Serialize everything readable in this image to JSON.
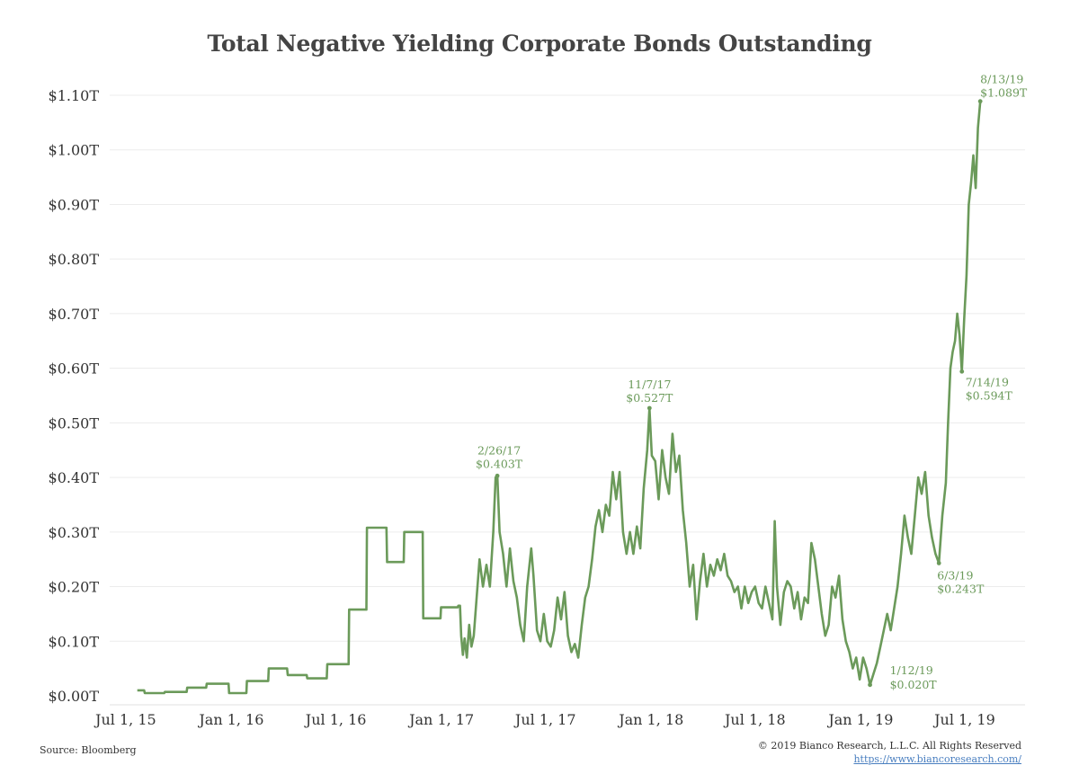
{
  "chart_data": {
    "type": "line",
    "title": "Total Negative Yielding Corporate Bonds Outstanding",
    "xlabel": "",
    "ylabel": "",
    "ylim": [
      0,
      1.1
    ],
    "grid": true,
    "legend": "none",
    "line_color": "#6b9a5a",
    "y_ticks": [
      {
        "value": 0.0,
        "label": "$0.00T"
      },
      {
        "value": 0.1,
        "label": "$0.10T"
      },
      {
        "value": 0.2,
        "label": "$0.20T"
      },
      {
        "value": 0.3,
        "label": "$0.30T"
      },
      {
        "value": 0.4,
        "label": "$0.40T"
      },
      {
        "value": 0.5,
        "label": "$0.50T"
      },
      {
        "value": 0.6,
        "label": "$0.60T"
      },
      {
        "value": 0.7,
        "label": "$0.70T"
      },
      {
        "value": 0.8,
        "label": "$0.80T"
      },
      {
        "value": 0.9,
        "label": "$0.90T"
      },
      {
        "value": 1.0,
        "label": "$1.00T"
      },
      {
        "value": 1.1,
        "label": "$1.10T"
      }
    ],
    "x_ticks": [
      {
        "date": "2015-07-01",
        "label": "Jul 1, 15"
      },
      {
        "date": "2016-01-01",
        "label": "Jan 1, 16"
      },
      {
        "date": "2016-07-01",
        "label": "Jul 1, 16"
      },
      {
        "date": "2017-01-01",
        "label": "Jan 1, 17"
      },
      {
        "date": "2017-07-01",
        "label": "Jul 1, 17"
      },
      {
        "date": "2018-01-01",
        "label": "Jan 1, 18"
      },
      {
        "date": "2018-07-01",
        "label": "Jul 1, 18"
      },
      {
        "date": "2019-01-01",
        "label": "Jan 1, 19"
      },
      {
        "date": "2019-07-01",
        "label": "Jul 1, 19"
      }
    ],
    "x_range": [
      "2015-06-03",
      "2019-10-14"
    ],
    "series": [
      {
        "points": [
          [
            "2015-07-21",
            0.01
          ],
          [
            "2015-08-02",
            0.01
          ],
          [
            "2015-08-03",
            0.005
          ],
          [
            "2015-09-06",
            0.005
          ],
          [
            "2015-09-07",
            0.007
          ],
          [
            "2015-10-15",
            0.007
          ],
          [
            "2015-10-16",
            0.015
          ],
          [
            "2015-11-18",
            0.015
          ],
          [
            "2015-11-19",
            0.022
          ],
          [
            "2015-12-27",
            0.022
          ],
          [
            "2015-12-28",
            0.005
          ],
          [
            "2016-01-27",
            0.005
          ],
          [
            "2016-01-28",
            0.027
          ],
          [
            "2016-03-05",
            0.027
          ],
          [
            "2016-03-06",
            0.05
          ],
          [
            "2016-04-07",
            0.05
          ],
          [
            "2016-04-08",
            0.038
          ],
          [
            "2016-05-11",
            0.038
          ],
          [
            "2016-05-12",
            0.032
          ],
          [
            "2016-06-15",
            0.032
          ],
          [
            "2016-06-16",
            0.058
          ],
          [
            "2016-07-23",
            0.058
          ],
          [
            "2016-07-24",
            0.158
          ],
          [
            "2016-08-23",
            0.158
          ],
          [
            "2016-08-24",
            0.308
          ],
          [
            "2016-09-27",
            0.308
          ],
          [
            "2016-09-28",
            0.245
          ],
          [
            "2016-10-27",
            0.245
          ],
          [
            "2016-10-28",
            0.3
          ],
          [
            "2016-11-29",
            0.3
          ],
          [
            "2016-11-30",
            0.142
          ],
          [
            "2016-12-30",
            0.142
          ],
          [
            "2016-12-31",
            0.162
          ],
          [
            "2017-01-29",
            0.162
          ],
          [
            "2017-01-30",
            0.165
          ],
          [
            "2017-02-02",
            0.165
          ],
          [
            "2017-02-04",
            0.11
          ],
          [
            "2017-02-07",
            0.075
          ],
          [
            "2017-02-10",
            0.105
          ],
          [
            "2017-02-14",
            0.07
          ],
          [
            "2017-02-18",
            0.13
          ],
          [
            "2017-02-22",
            0.09
          ],
          [
            "2017-02-26",
            0.11
          ],
          [
            "2017-03-03",
            0.18
          ],
          [
            "2017-03-08",
            0.25
          ],
          [
            "2017-03-14",
            0.2
          ],
          [
            "2017-03-20",
            0.24
          ],
          [
            "2017-03-26",
            0.2
          ],
          [
            "2017-04-01",
            0.3
          ],
          [
            "2017-04-05",
            0.4
          ],
          [
            "2017-04-08",
            0.403
          ],
          [
            "2017-04-12",
            0.3
          ],
          [
            "2017-04-18",
            0.26
          ],
          [
            "2017-04-24",
            0.2
          ],
          [
            "2017-04-30",
            0.27
          ],
          [
            "2017-05-06",
            0.21
          ],
          [
            "2017-05-12",
            0.18
          ],
          [
            "2017-05-18",
            0.13
          ],
          [
            "2017-05-24",
            0.1
          ],
          [
            "2017-05-30",
            0.2
          ],
          [
            "2017-06-06",
            0.27
          ],
          [
            "2017-06-10",
            0.22
          ],
          [
            "2017-06-16",
            0.12
          ],
          [
            "2017-06-22",
            0.1
          ],
          [
            "2017-06-28",
            0.15
          ],
          [
            "2017-07-04",
            0.1
          ],
          [
            "2017-07-10",
            0.09
          ],
          [
            "2017-07-16",
            0.12
          ],
          [
            "2017-07-22",
            0.18
          ],
          [
            "2017-07-28",
            0.14
          ],
          [
            "2017-08-03",
            0.19
          ],
          [
            "2017-08-09",
            0.11
          ],
          [
            "2017-08-15",
            0.08
          ],
          [
            "2017-08-21",
            0.095
          ],
          [
            "2017-08-27",
            0.07
          ],
          [
            "2017-09-02",
            0.13
          ],
          [
            "2017-09-08",
            0.18
          ],
          [
            "2017-09-14",
            0.2
          ],
          [
            "2017-09-20",
            0.25
          ],
          [
            "2017-09-26",
            0.31
          ],
          [
            "2017-10-02",
            0.34
          ],
          [
            "2017-10-08",
            0.3
          ],
          [
            "2017-10-14",
            0.35
          ],
          [
            "2017-10-20",
            0.33
          ],
          [
            "2017-10-26",
            0.41
          ],
          [
            "2017-11-01",
            0.36
          ],
          [
            "2017-11-07",
            0.41
          ],
          [
            "2017-11-13",
            0.3
          ],
          [
            "2017-11-19",
            0.26
          ],
          [
            "2017-11-25",
            0.3
          ],
          [
            "2017-12-01",
            0.26
          ],
          [
            "2017-12-07",
            0.31
          ],
          [
            "2017-12-13",
            0.27
          ],
          [
            "2017-12-19",
            0.38
          ],
          [
            "2017-12-25",
            0.45
          ],
          [
            "2017-12-29",
            0.527
          ],
          [
            "2018-01-02",
            0.44
          ],
          [
            "2018-01-08",
            0.43
          ],
          [
            "2018-01-14",
            0.36
          ],
          [
            "2018-01-20",
            0.45
          ],
          [
            "2018-01-26",
            0.4
          ],
          [
            "2018-02-01",
            0.37
          ],
          [
            "2018-02-07",
            0.48
          ],
          [
            "2018-02-13",
            0.41
          ],
          [
            "2018-02-19",
            0.44
          ],
          [
            "2018-02-25",
            0.34
          ],
          [
            "2018-03-03",
            0.28
          ],
          [
            "2018-03-09",
            0.2
          ],
          [
            "2018-03-15",
            0.24
          ],
          [
            "2018-03-21",
            0.14
          ],
          [
            "2018-03-27",
            0.21
          ],
          [
            "2018-04-02",
            0.26
          ],
          [
            "2018-04-08",
            0.2
          ],
          [
            "2018-04-14",
            0.24
          ],
          [
            "2018-04-20",
            0.22
          ],
          [
            "2018-04-26",
            0.25
          ],
          [
            "2018-05-02",
            0.23
          ],
          [
            "2018-05-08",
            0.26
          ],
          [
            "2018-05-14",
            0.22
          ],
          [
            "2018-05-20",
            0.21
          ],
          [
            "2018-05-26",
            0.19
          ],
          [
            "2018-06-01",
            0.2
          ],
          [
            "2018-06-07",
            0.16
          ],
          [
            "2018-06-13",
            0.2
          ],
          [
            "2018-06-19",
            0.17
          ],
          [
            "2018-06-25",
            0.19
          ],
          [
            "2018-07-01",
            0.2
          ],
          [
            "2018-07-07",
            0.17
          ],
          [
            "2018-07-13",
            0.16
          ],
          [
            "2018-07-19",
            0.2
          ],
          [
            "2018-07-25",
            0.17
          ],
          [
            "2018-07-31",
            0.14
          ],
          [
            "2018-08-04",
            0.32
          ],
          [
            "2018-08-08",
            0.2
          ],
          [
            "2018-08-14",
            0.13
          ],
          [
            "2018-08-20",
            0.19
          ],
          [
            "2018-08-26",
            0.21
          ],
          [
            "2018-09-01",
            0.2
          ],
          [
            "2018-09-07",
            0.16
          ],
          [
            "2018-09-13",
            0.19
          ],
          [
            "2018-09-19",
            0.14
          ],
          [
            "2018-09-25",
            0.18
          ],
          [
            "2018-10-01",
            0.17
          ],
          [
            "2018-10-07",
            0.28
          ],
          [
            "2018-10-13",
            0.25
          ],
          [
            "2018-10-19",
            0.2
          ],
          [
            "2018-10-25",
            0.15
          ],
          [
            "2018-10-31",
            0.11
          ],
          [
            "2018-11-06",
            0.13
          ],
          [
            "2018-11-12",
            0.2
          ],
          [
            "2018-11-18",
            0.18
          ],
          [
            "2018-11-24",
            0.22
          ],
          [
            "2018-11-30",
            0.14
          ],
          [
            "2018-12-06",
            0.1
          ],
          [
            "2018-12-12",
            0.08
          ],
          [
            "2018-12-18",
            0.05
          ],
          [
            "2018-12-24",
            0.07
          ],
          [
            "2018-12-30",
            0.03
          ],
          [
            "2019-01-05",
            0.07
          ],
          [
            "2019-01-11",
            0.05
          ],
          [
            "2019-01-17",
            0.02
          ],
          [
            "2019-01-23",
            0.04
          ],
          [
            "2019-01-29",
            0.06
          ],
          [
            "2019-02-04",
            0.09
          ],
          [
            "2019-02-10",
            0.12
          ],
          [
            "2019-02-16",
            0.15
          ],
          [
            "2019-02-22",
            0.12
          ],
          [
            "2019-02-28",
            0.16
          ],
          [
            "2019-03-06",
            0.2
          ],
          [
            "2019-03-12",
            0.26
          ],
          [
            "2019-03-18",
            0.33
          ],
          [
            "2019-03-24",
            0.29
          ],
          [
            "2019-03-30",
            0.26
          ],
          [
            "2019-04-05",
            0.33
          ],
          [
            "2019-04-11",
            0.4
          ],
          [
            "2019-04-17",
            0.37
          ],
          [
            "2019-04-23",
            0.41
          ],
          [
            "2019-04-29",
            0.33
          ],
          [
            "2019-05-05",
            0.29
          ],
          [
            "2019-05-11",
            0.26
          ],
          [
            "2019-05-17",
            0.243
          ],
          [
            "2019-05-23",
            0.33
          ],
          [
            "2019-05-29",
            0.39
          ],
          [
            "2019-06-02",
            0.5
          ],
          [
            "2019-06-06",
            0.6
          ],
          [
            "2019-06-10",
            0.63
          ],
          [
            "2019-06-14",
            0.65
          ],
          [
            "2019-06-18",
            0.7
          ],
          [
            "2019-06-22",
            0.66
          ],
          [
            "2019-06-26",
            0.594
          ],
          [
            "2019-06-30",
            0.69
          ],
          [
            "2019-07-04",
            0.77
          ],
          [
            "2019-07-08",
            0.9
          ],
          [
            "2019-07-12",
            0.94
          ],
          [
            "2019-07-16",
            0.99
          ],
          [
            "2019-07-20",
            0.93
          ],
          [
            "2019-07-24",
            1.04
          ],
          [
            "2019-07-28",
            1.089
          ]
        ]
      }
    ],
    "annotations": [
      {
        "date": "2017-04-08",
        "value": 0.403,
        "date_label": "2/26/17",
        "value_label": "$0.403T"
      },
      {
        "date": "2017-12-29",
        "value": 0.527,
        "date_label": "11/7/17",
        "value_label": "$0.527T"
      },
      {
        "date": "2019-01-17",
        "value": 0.02,
        "date_label": "1/12/19",
        "value_label": "$0.020T"
      },
      {
        "date": "2019-05-17",
        "value": 0.243,
        "date_label": "6/3/19",
        "value_label": "$0.243T"
      },
      {
        "date": "2019-06-26",
        "value": 0.594,
        "date_label": "7/14/19",
        "value_label": "$0.594T"
      },
      {
        "date": "2019-07-28",
        "value": 1.089,
        "date_label": "8/13/19",
        "value_label": "$1.089T"
      }
    ]
  },
  "footer": {
    "source": "Source: Bloomberg",
    "copyright": "© 2019 Bianco Research, L.L.C. All Rights Reserved",
    "website": "https://www.biancoresearch.com/"
  }
}
